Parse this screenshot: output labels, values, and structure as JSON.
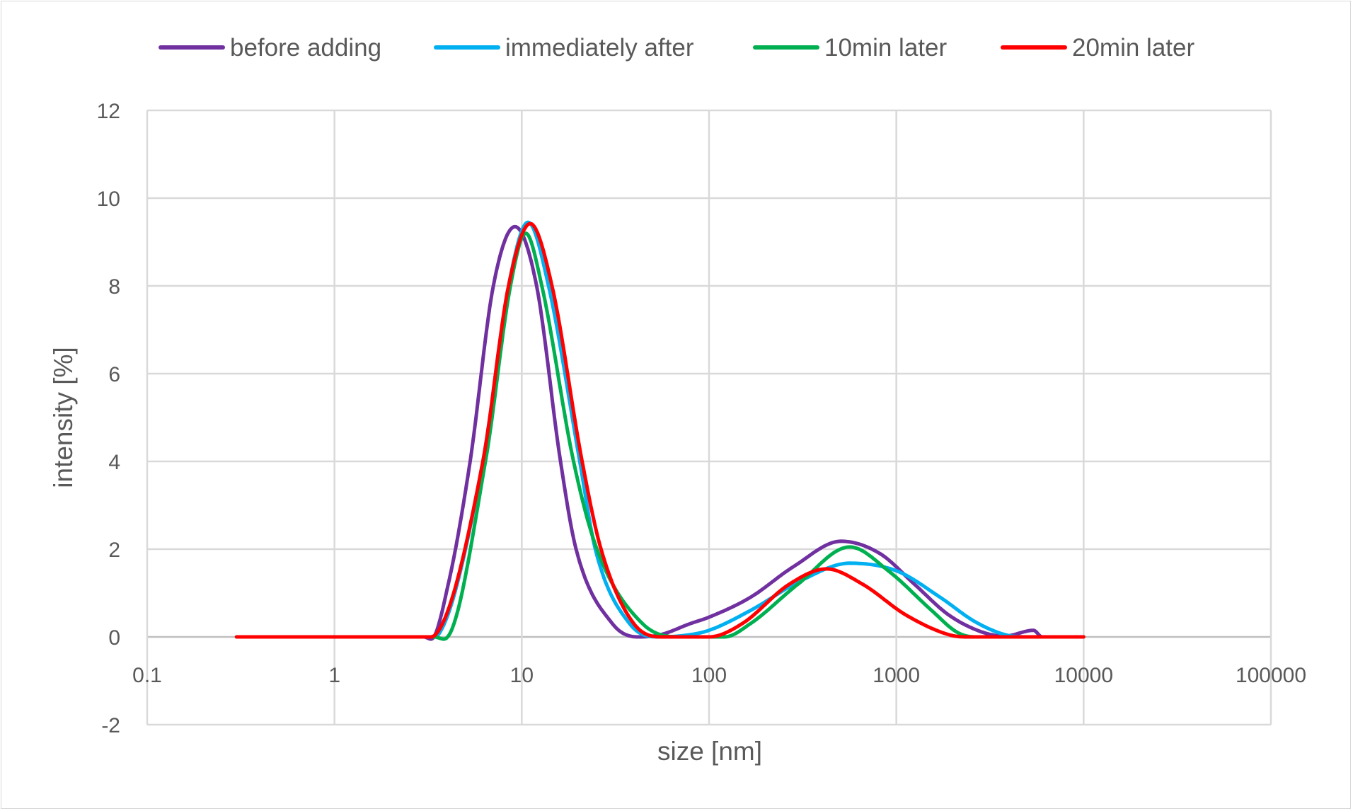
{
  "chart_data": {
    "type": "line",
    "title": "",
    "xlabel": "size [nm]",
    "ylabel": "intensity [%]",
    "xscale": "log",
    "xlim": [
      0.1,
      100000
    ],
    "ylim": [
      -2,
      12
    ],
    "xticks": [
      "0.1",
      "1",
      "10",
      "100",
      "1000",
      "10000",
      "100000"
    ],
    "yticks": [
      "-2",
      "0",
      "2",
      "4",
      "6",
      "8",
      "10",
      "12"
    ],
    "grid": true,
    "legend_position": "top",
    "series": [
      {
        "name": "before adding",
        "color": "#7030a0",
        "x": [
          0.3,
          3.0,
          3.28,
          4.05,
          5.3,
          7.05,
          9.2,
          12,
          16.1,
          19.5,
          30.5,
          41.9,
          55,
          79,
          100,
          166,
          282,
          507,
          817,
          1250,
          1905,
          2917,
          3800,
          5400,
          6000,
          10000
        ],
        "y": [
          0,
          0,
          -0.05,
          1.2,
          4,
          8,
          9.35,
          8,
          4,
          2,
          0.3,
          0,
          0.05,
          0.3,
          0.45,
          0.9,
          1.6,
          2.18,
          1.9,
          1.2,
          0.5,
          0.1,
          0.02,
          0.15,
          0,
          0
        ]
      },
      {
        "name": "immediately after",
        "color": "#00b0f0",
        "x": [
          0.3,
          3.3,
          3.65,
          6.2,
          8.5,
          10.8,
          13.9,
          20.4,
          24.7,
          37.7,
          54.6,
          79,
          100,
          166,
          315,
          564,
          1010,
          1718,
          2624,
          3810,
          4970,
          10000
        ],
        "y": [
          0,
          0,
          0.1,
          4,
          8,
          9.45,
          8,
          4,
          2,
          0.3,
          0,
          0.05,
          0.15,
          0.6,
          1.3,
          1.68,
          1.5,
          0.9,
          0.35,
          0.05,
          0,
          0
        ]
      },
      {
        "name": "10min later",
        "color": "#00b050",
        "x": [
          0.3,
          3.4,
          3.85,
          6.4,
          8.7,
          10.5,
          12.8,
          18.9,
          25.2,
          44.2,
          71,
          121,
          166,
          298,
          564,
          910,
          1546,
          2123,
          2624,
          10000
        ],
        "y": [
          0,
          0,
          -0.05,
          4,
          8,
          9.2,
          8,
          4,
          2,
          0.3,
          0,
          0,
          0.3,
          1.2,
          2.05,
          1.5,
          0.6,
          0.1,
          0,
          0
        ]
      },
      {
        "name": "20min later",
        "color": "#ff0000",
        "x": [
          0.3,
          3.2,
          3.46,
          6.2,
          8.5,
          11.1,
          14.5,
          21,
          26.5,
          39.7,
          57.5,
          100,
          150,
          268,
          424,
          661,
          1125,
          1910,
          2360,
          10000
        ],
        "y": [
          0,
          0,
          0.05,
          4,
          8,
          9.42,
          8,
          4,
          2,
          0.3,
          0,
          0,
          0.3,
          1.2,
          1.55,
          1.2,
          0.5,
          0.05,
          0,
          0
        ]
      }
    ]
  }
}
